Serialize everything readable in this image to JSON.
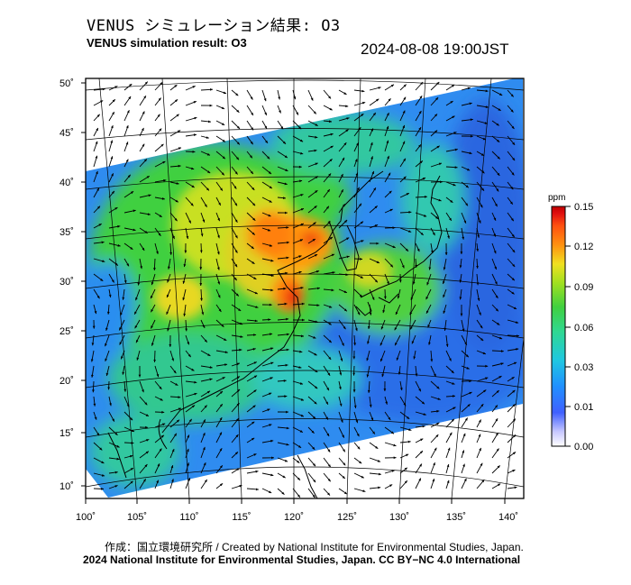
{
  "title_jp": "VENUS シミュレーション結果: O3",
  "title_en": "VENUS simulation result: O3",
  "datetime": "2024-08-08 19:00JST",
  "colorbar": {
    "unit": "ppm",
    "ticks": [
      "0.15",
      "0.12",
      "0.09",
      "0.06",
      "0.03",
      "0.01",
      "0.00"
    ],
    "colors": [
      "#ffffff",
      "#c8c8ff",
      "#4060ff",
      "#2090ff",
      "#20c8e0",
      "#30d890",
      "#40d040",
      "#a0e020",
      "#f0e020",
      "#ff9010",
      "#ff5010",
      "#e01010",
      "#c00000"
    ]
  },
  "map": {
    "lat_labels": [
      "50˚",
      "45˚",
      "40˚",
      "35˚",
      "30˚",
      "25˚",
      "20˚",
      "15˚",
      "10˚"
    ],
    "lon_labels": [
      "100˚",
      "105˚",
      "110˚",
      "115˚",
      "120˚",
      "125˚",
      "130˚",
      "135˚",
      "140˚"
    ]
  },
  "footer": {
    "line1": "作成：国立環境研究所 / Created by National Institute for Environmental Studies, Japan.",
    "line2": "2024 National Institute for Environmental Studies, Japan. CC BY−NC 4.0 International"
  }
}
